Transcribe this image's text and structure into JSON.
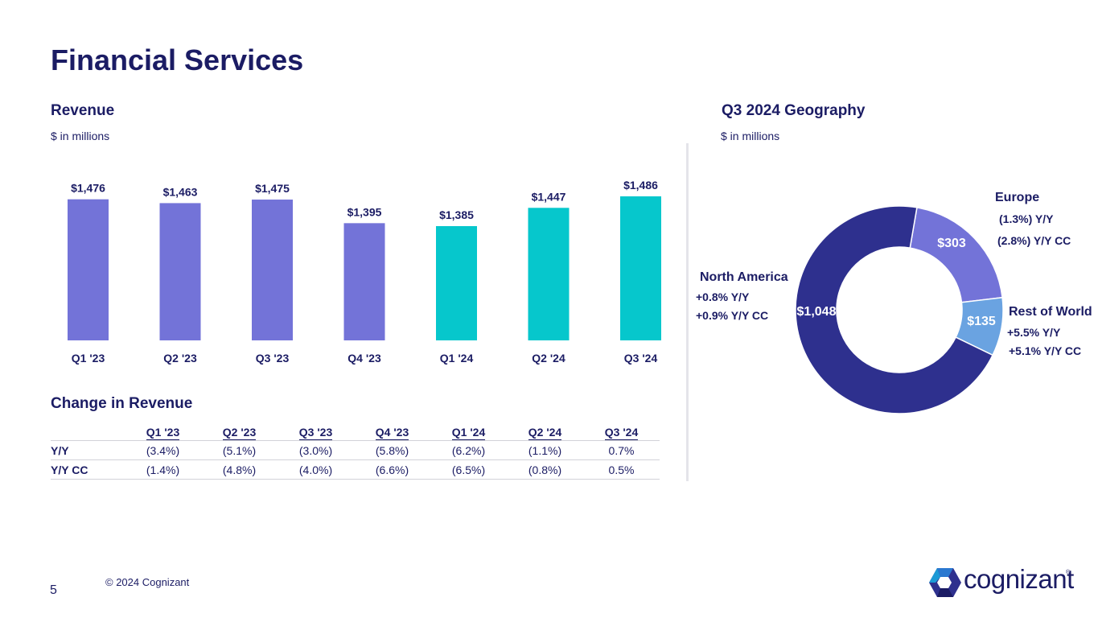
{
  "page": {
    "title": "Financial Services",
    "page_number": "5",
    "copyright": "© 2024 Cognizant",
    "brand": "cognizant",
    "brand_mark": "®"
  },
  "revenue": {
    "title": "Revenue",
    "subtitle": "$ in millions"
  },
  "change": {
    "title": "Change in Revenue",
    "columns": [
      "Q1 '23",
      "Q2 '23",
      "Q3 '23",
      "Q4 '23",
      "Q1 '24",
      "Q2 '24",
      "Q3 '24"
    ],
    "rows": [
      {
        "label": "Y/Y",
        "values": [
          "(3.4%)",
          "(5.1%)",
          "(3.0%)",
          "(5.8%)",
          "(6.2%)",
          "(1.1%)",
          "0.7%"
        ]
      },
      {
        "label": "Y/Y CC",
        "values": [
          "(1.4%)",
          "(4.8%)",
          "(4.0%)",
          "(6.6%)",
          "(6.5%)",
          "(0.8%)",
          "0.5%"
        ]
      }
    ]
  },
  "geography": {
    "title": "Q3 2024 Geography",
    "subtitle": "$ in millions",
    "north_america": {
      "name": "North America",
      "yy": "+0.8%  Y/Y",
      "cc": "+0.9%  Y/Y CC"
    },
    "europe": {
      "name": "Europe",
      "yy": "(1.3%) Y/Y",
      "cc": "(2.8%) Y/Y CC"
    },
    "rest_of_world": {
      "name": "Rest of World",
      "yy": "+5.5%  Y/Y",
      "cc": "+5.1%  Y/Y CC"
    }
  },
  "colors": {
    "navy": "#1b1c64",
    "purple": "#7373d8",
    "teal": "#06c7cc",
    "donut_navy": "#2e308e",
    "donut_purple": "#7373d8",
    "donut_blue": "#6aa3e1"
  },
  "icons": {
    "logo": "cognizant-logo-icon"
  },
  "chart_data": [
    {
      "type": "bar",
      "categories": [
        "Q1 '23",
        "Q2 '23",
        "Q3 '23",
        "Q4 '23",
        "Q1 '24",
        "Q2 '24",
        "Q3 '24"
      ],
      "values": [
        1476,
        1463,
        1475,
        1395,
        1385,
        1447,
        1486
      ],
      "data_labels": [
        "$1,476",
        "$1,463",
        "$1,475",
        "$1,395",
        "$1,385",
        "$1,447",
        "$1,486"
      ],
      "bar_colors": [
        "#7373d8",
        "#7373d8",
        "#7373d8",
        "#7373d8",
        "#06c7cc",
        "#06c7cc",
        "#06c7cc"
      ],
      "title": "Revenue",
      "ylabel": "$ in millions",
      "grid": false,
      "legend": "none"
    },
    {
      "type": "pie",
      "style": "donut",
      "title": "Q3 2024 Geography",
      "labels": [
        "Europe",
        "Rest of World",
        "North America"
      ],
      "values": [
        303,
        135,
        1048
      ],
      "data_labels": [
        "$303",
        "$135",
        "$1,048"
      ],
      "colors": [
        "#7373d8",
        "#6aa3e1",
        "#2e308e"
      ]
    }
  ]
}
